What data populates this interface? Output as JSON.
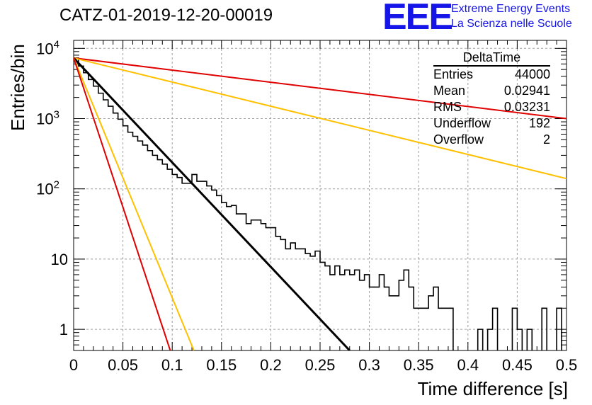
{
  "title": "CATZ-01-2019-12-20-00019",
  "logo": {
    "mark": "EEE",
    "line1": "Extreme Energy Events",
    "line2": "La Scienza nelle Scuole",
    "color": "#1515e8"
  },
  "stats": {
    "title": "DeltaTime",
    "rows": [
      {
        "label": "Entries",
        "value": "44000"
      },
      {
        "label": "Mean",
        "value": "0.02941"
      },
      {
        "label": "RMS",
        "value": "0.03231"
      },
      {
        "label": "Underflow",
        "value": "192"
      },
      {
        "label": "Overflow",
        "value": "2"
      }
    ]
  },
  "chart_data": {
    "type": "line",
    "title": "CATZ-01-2019-12-20-00019",
    "xlabel": "Time difference [s]",
    "ylabel": "Entries/bin",
    "xlim": [
      0,
      0.5
    ],
    "ylim": [
      0.5,
      13000
    ],
    "y_scale": "log",
    "grid": true,
    "x_ticks": [
      "0",
      "0.05",
      "0.1",
      "0.15",
      "0.2",
      "0.25",
      "0.3",
      "0.35",
      "0.4",
      "0.45",
      "0.5"
    ],
    "y_ticks": [
      {
        "value": 1,
        "label": "1"
      },
      {
        "value": 10,
        "label": "10"
      },
      {
        "value": 100,
        "label": "10^2"
      },
      {
        "value": 1000,
        "label": "10^3"
      },
      {
        "value": 10000,
        "label": "10^4"
      }
    ],
    "histogram": {
      "bin_width": 0.005,
      "x_start": 0,
      "color": "#000000",
      "counts": [
        7300,
        5600,
        4500,
        3600,
        2900,
        2300,
        1850,
        1500,
        1200,
        980,
        790,
        640,
        560,
        480,
        420,
        350,
        300,
        260,
        225,
        190,
        160,
        145,
        120,
        120,
        160,
        128,
        128,
        110,
        96,
        80,
        64,
        56,
        58,
        44,
        44,
        32,
        36,
        36,
        32,
        28,
        28,
        21,
        19,
        14,
        17,
        14,
        14,
        12,
        11,
        13,
        9,
        8,
        6,
        8,
        6,
        7,
        6,
        7,
        5,
        6,
        4,
        4,
        6,
        4,
        3,
        3,
        5,
        7,
        4,
        2,
        2,
        2,
        3,
        4,
        2,
        2,
        2,
        0,
        0,
        0,
        0,
        0,
        1,
        0,
        1,
        2,
        0,
        0,
        0,
        2,
        1,
        0,
        1,
        0,
        0,
        2,
        0,
        0,
        2,
        0
      ]
    },
    "series": [
      {
        "color": "#e00000",
        "x": [
          0,
          0.5
        ],
        "y": [
          7300,
          1000
        ]
      },
      {
        "color": "#ffc000",
        "x": [
          0,
          0.5
        ],
        "y": [
          7300,
          140
        ]
      },
      {
        "color": "#000000",
        "x": [
          0,
          0.28
        ],
        "y": [
          7300,
          0.5
        ]
      },
      {
        "color": "#ffc000",
        "x": [
          0,
          0.122
        ],
        "y": [
          7300,
          0.5
        ]
      },
      {
        "color": "#e00000",
        "x": [
          0,
          0.098
        ],
        "y": [
          7300,
          0.5
        ]
      }
    ]
  }
}
